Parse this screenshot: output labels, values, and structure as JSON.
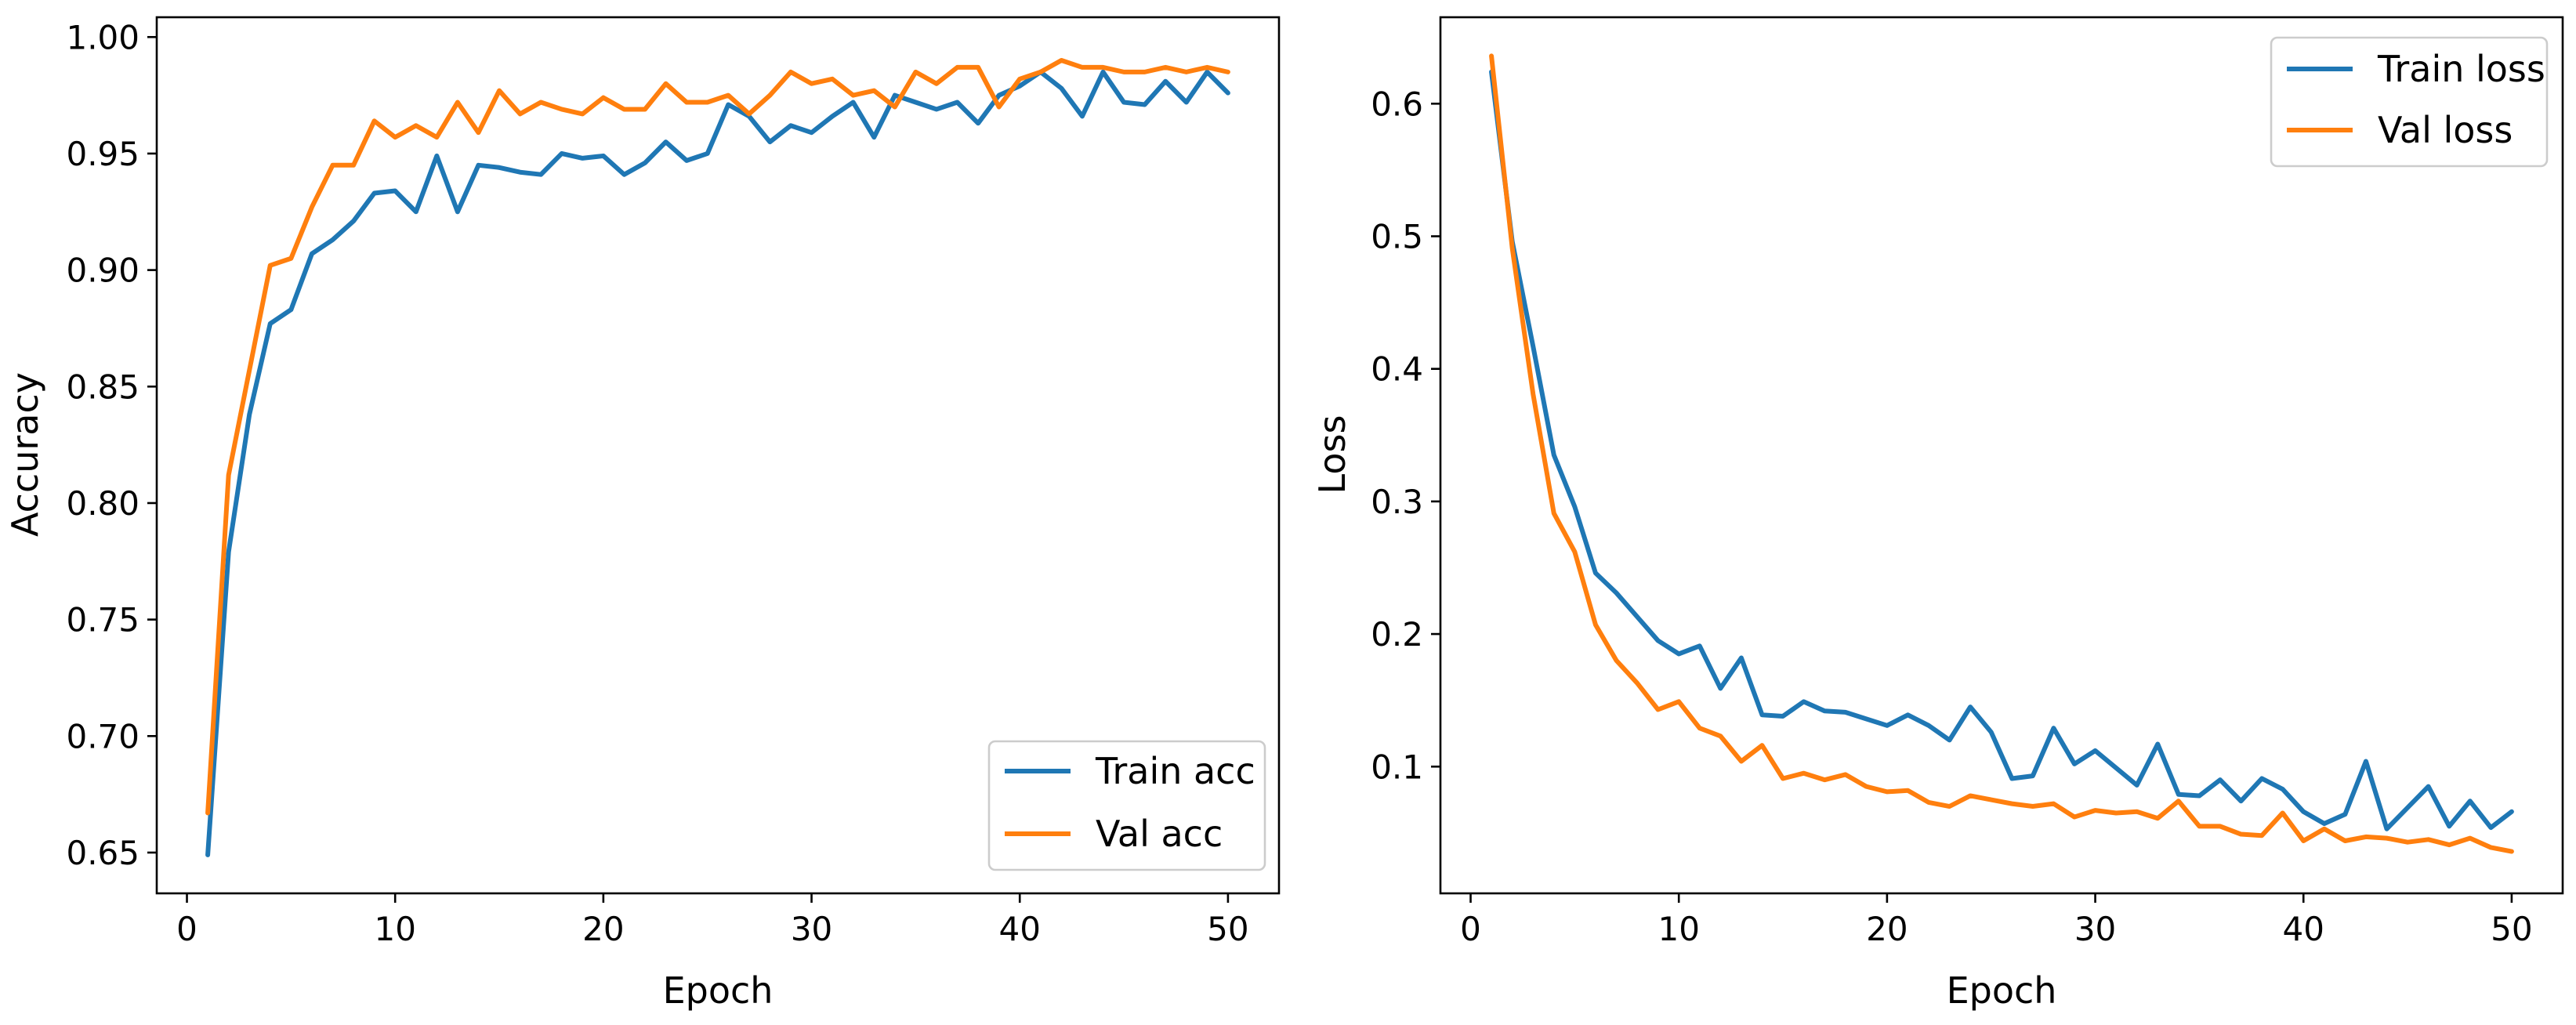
{
  "chart_data": [
    {
      "type": "line",
      "xlabel": "Epoch",
      "ylabel": "Accuracy",
      "xlim": [
        -1.45,
        52.45
      ],
      "ylim": [
        0.6325,
        1.0085
      ],
      "xticks": [
        0,
        10,
        20,
        30,
        40,
        50
      ],
      "xtick_labels": [
        "0",
        "10",
        "20",
        "30",
        "40",
        "50"
      ],
      "yticks": [
        0.65,
        0.7,
        0.75,
        0.8,
        0.85,
        0.9,
        0.95,
        1.0
      ],
      "ytick_labels": [
        "0.65",
        "0.70",
        "0.75",
        "0.80",
        "0.85",
        "0.90",
        "0.95",
        "1.00"
      ],
      "legend_position": "lower-right",
      "x": [
        1,
        2,
        3,
        4,
        5,
        6,
        7,
        8,
        9,
        10,
        11,
        12,
        13,
        14,
        15,
        16,
        17,
        18,
        19,
        20,
        21,
        22,
        23,
        24,
        25,
        26,
        27,
        28,
        29,
        30,
        31,
        32,
        33,
        34,
        35,
        36,
        37,
        38,
        39,
        40,
        41,
        42,
        43,
        44,
        45,
        46,
        47,
        48,
        49,
        50
      ],
      "series": [
        {
          "name": "Train acc",
          "color": "#1f77b4",
          "values": [
            0.649,
            0.779,
            0.838,
            0.877,
            0.883,
            0.907,
            0.913,
            0.921,
            0.933,
            0.934,
            0.925,
            0.949,
            0.925,
            0.945,
            0.944,
            0.942,
            0.941,
            0.95,
            0.948,
            0.949,
            0.941,
            0.946,
            0.955,
            0.947,
            0.95,
            0.971,
            0.966,
            0.955,
            0.962,
            0.959,
            0.966,
            0.972,
            0.957,
            0.975,
            0.972,
            0.969,
            0.972,
            0.963,
            0.975,
            0.979,
            0.985,
            0.978,
            0.966,
            0.985,
            0.972,
            0.971,
            0.981,
            0.972,
            0.985,
            0.976
          ]
        },
        {
          "name": "Val acc",
          "color": "#ff7f0e",
          "values": [
            0.667,
            0.812,
            0.857,
            0.902,
            0.905,
            0.927,
            0.945,
            0.945,
            0.964,
            0.957,
            0.962,
            0.957,
            0.972,
            0.959,
            0.977,
            0.967,
            0.972,
            0.969,
            0.967,
            0.974,
            0.969,
            0.969,
            0.98,
            0.972,
            0.972,
            0.975,
            0.967,
            0.975,
            0.985,
            0.98,
            0.982,
            0.975,
            0.977,
            0.97,
            0.985,
            0.98,
            0.987,
            0.987,
            0.97,
            0.982,
            0.985,
            0.99,
            0.987,
            0.987,
            0.985,
            0.985,
            0.987,
            0.985,
            0.987,
            0.985
          ]
        }
      ]
    },
    {
      "type": "line",
      "xlabel": "Epoch",
      "ylabel": "Loss",
      "xlim": [
        -1.45,
        52.45
      ],
      "ylim": [
        0.0044,
        0.6652
      ],
      "xticks": [
        0,
        10,
        20,
        30,
        40,
        50
      ],
      "xtick_labels": [
        "0",
        "10",
        "20",
        "30",
        "40",
        "50"
      ],
      "yticks": [
        0.1,
        0.2,
        0.3,
        0.4,
        0.5,
        0.6
      ],
      "ytick_labels": [
        "0.1",
        "0.2",
        "0.3",
        "0.4",
        "0.5",
        "0.6"
      ],
      "legend_position": "upper-right",
      "x": [
        1,
        2,
        3,
        4,
        5,
        6,
        7,
        8,
        9,
        10,
        11,
        12,
        13,
        14,
        15,
        16,
        17,
        18,
        19,
        20,
        21,
        22,
        23,
        24,
        25,
        26,
        27,
        28,
        29,
        30,
        31,
        32,
        33,
        34,
        35,
        36,
        37,
        38,
        39,
        40,
        41,
        42,
        43,
        44,
        45,
        46,
        47,
        48,
        49,
        50
      ],
      "series": [
        {
          "name": "Train loss",
          "color": "#1f77b4",
          "values": [
            0.624,
            0.496,
            0.417,
            0.335,
            0.296,
            0.246,
            0.231,
            0.213,
            0.195,
            0.185,
            0.191,
            0.159,
            0.182,
            0.139,
            0.138,
            0.149,
            0.142,
            0.141,
            0.136,
            0.131,
            0.139,
            0.131,
            0.12,
            0.145,
            0.126,
            0.091,
            0.093,
            0.129,
            0.102,
            0.112,
            0.099,
            0.086,
            0.117,
            0.079,
            0.078,
            0.09,
            0.074,
            0.091,
            0.083,
            0.066,
            0.057,
            0.064,
            0.104,
            0.053,
            0.069,
            0.085,
            0.055,
            0.074,
            0.054,
            0.066
          ]
        },
        {
          "name": "Val loss",
          "color": "#ff7f0e",
          "values": [
            0.636,
            0.491,
            0.381,
            0.291,
            0.262,
            0.207,
            0.18,
            0.163,
            0.143,
            0.149,
            0.129,
            0.123,
            0.104,
            0.116,
            0.091,
            0.095,
            0.09,
            0.094,
            0.085,
            0.081,
            0.082,
            0.073,
            0.07,
            0.078,
            0.075,
            0.072,
            0.07,
            0.072,
            0.062,
            0.067,
            0.065,
            0.066,
            0.061,
            0.074,
            0.055,
            0.055,
            0.049,
            0.048,
            0.065,
            0.044,
            0.053,
            0.044,
            0.047,
            0.046,
            0.043,
            0.045,
            0.041,
            0.046,
            0.039,
            0.036
          ]
        }
      ]
    }
  ]
}
